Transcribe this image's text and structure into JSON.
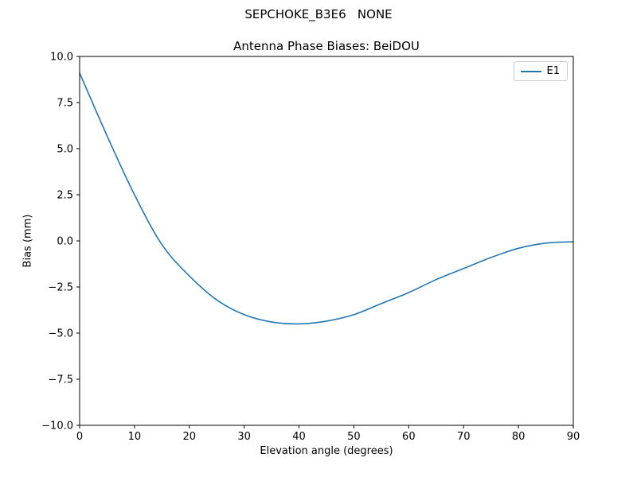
{
  "figure": {
    "suptitle": "SEPCHOKE_B3E6   NONE"
  },
  "chart_data": {
    "type": "line",
    "title": "Antenna Phase Biases: BeiDOU",
    "xlabel": "Elevation angle (degrees)",
    "ylabel": "Bias (mm)",
    "xlim": [
      0,
      90
    ],
    "ylim": [
      -10,
      10
    ],
    "xticks": [
      0,
      10,
      20,
      30,
      40,
      50,
      60,
      70,
      80,
      90
    ],
    "yticks": [
      -10,
      -7.5,
      -5,
      -2.5,
      0,
      2.5,
      5,
      7.5,
      10
    ],
    "grid": false,
    "legend_position": "upper right",
    "line_color": "#1f77b4",
    "series": [
      {
        "name": "E1",
        "x": [
          0,
          5,
          10,
          15,
          20,
          25,
          30,
          35,
          40,
          45,
          50,
          55,
          60,
          65,
          70,
          75,
          80,
          85,
          90
        ],
        "values": [
          9.1,
          5.7,
          2.5,
          -0.2,
          -1.9,
          -3.2,
          -4.0,
          -4.4,
          -4.5,
          -4.35,
          -4.0,
          -3.4,
          -2.8,
          -2.1,
          -1.5,
          -0.9,
          -0.4,
          -0.12,
          -0.05
        ]
      }
    ]
  }
}
